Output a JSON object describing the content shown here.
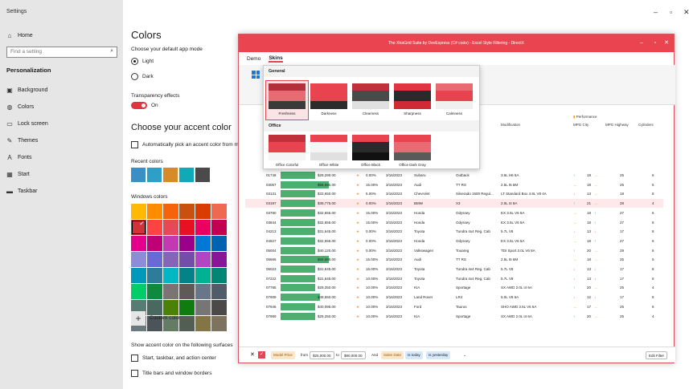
{
  "settings": {
    "window_title": "Settings",
    "nav": {
      "home": "Home",
      "search_placeholder": "Find a setting",
      "section": "Personalization",
      "items": [
        "Background",
        "Colors",
        "Lock screen",
        "Themes",
        "Fonts",
        "Start",
        "Taskbar"
      ]
    },
    "main": {
      "title": "Colors",
      "mode_label": "Choose your default app mode",
      "light": "Light",
      "dark": "Dark",
      "transparency_label": "Transparency effects",
      "toggle_state": "On",
      "accent_title": "Choose your accent color",
      "auto_pick": "Automatically pick an accent color from my",
      "recent_label": "Recent colors",
      "recent_colors": [
        "#3a8fc7",
        "#2f9fc9",
        "#d68a2a",
        "#11a8b8",
        "#4a4a4a"
      ],
      "windows_label": "Windows colors",
      "windows_colors": [
        "#ffb900",
        "#ff8c00",
        "#f7630c",
        "#ca5010",
        "#da3b01",
        "#ef6950",
        "#d13438",
        "#ff4343",
        "#e74856",
        "#e81123",
        "#ea005e",
        "#c30052",
        "#e3008c",
        "#bf0077",
        "#c239b3",
        "#9a0089",
        "#0078d7",
        "#0063b1",
        "#8e8cd8",
        "#6b69d6",
        "#8764b8",
        "#744da9",
        "#b146c2",
        "#881798",
        "#0099bc",
        "#2d7d9a",
        "#00b7c3",
        "#038387",
        "#00b294",
        "#018574",
        "#00cc6a",
        "#10893e",
        "#7a7574",
        "#5d5a58",
        "#68768a",
        "#515c6b",
        "#567c73",
        "#486860",
        "#498205",
        "#107c10",
        "#767676",
        "#4c4a48",
        "#69797e",
        "#4a5459",
        "#647c64",
        "#525e54",
        "#847545",
        "#7e735f"
      ],
      "custom_color": "Custom color",
      "surfaces_label": "Show accent color on the following surfaces",
      "surface1": "Start, taskbar, and action center",
      "surface2": "Title bars and window borders"
    }
  },
  "app": {
    "title": "The XtraGrid Suite by DevExpress (C# code) - Excel Style Filtering - DirectX",
    "tabs": [
      "Demo",
      "Skins"
    ],
    "skins_popup": {
      "general_header": "General",
      "office_header": "Office",
      "general": [
        {
          "name": "Freshness",
          "c": [
            "#b3303a",
            "#e86b74",
            "#3a3a3a"
          ]
        },
        {
          "name": "Darkness",
          "c": [
            "#e8434f",
            "#e8434f",
            "#2c2c2c"
          ]
        },
        {
          "name": "Clearness",
          "c": [
            "#c0303a",
            "#4a4a4a",
            "#e0e0e0"
          ]
        },
        {
          "name": "Sharpness",
          "c": [
            "#e03540",
            "#2a2a2a",
            "#d02a35"
          ]
        },
        {
          "name": "Calmness",
          "c": [
            "#e86b74",
            "#e8434f",
            "#f0f0f0"
          ]
        }
      ],
      "office": [
        {
          "name": "Office Colorful",
          "c": [
            "#c0303a",
            "#e8434f",
            "#f5f5f5"
          ]
        },
        {
          "name": "Office White",
          "c": [
            "#e8434f",
            "#f5f5f5",
            "#e0e0e0"
          ]
        },
        {
          "name": "Office Black",
          "c": [
            "#e8434f",
            "#2a2a2a",
            "#111111"
          ]
        },
        {
          "name": "Office Dark Gray",
          "c": [
            "#e8434f",
            "#e86b74",
            "#5a5a5a"
          ]
        }
      ]
    },
    "columns": {
      "modification": "Modification",
      "performance": "Performance",
      "mpg_city": "MPG City",
      "mpg_highway": "MPG Highway",
      "cylinders": "Cylinders"
    },
    "rows": [
      {
        "id": "01748",
        "bar": 0.62,
        "price": "$29,290.00",
        "pct": "0.00%",
        "date": "3/16/2023",
        "make": "Subaru",
        "model": "Outback",
        "mod": "3.6L H6 5A",
        "city": "18",
        "ca": "up",
        "hwy": "25",
        "ha": "right",
        "cyl": "6"
      },
      {
        "id": "03067",
        "bar": 0.85,
        "price": "$58,595.00",
        "pct": "15.00%",
        "date": "3/16/2023",
        "make": "Audi",
        "model": "TT RS",
        "mod": "2.5L I5 6M",
        "city": "18",
        "ca": "right",
        "hwy": "25",
        "ha": "right",
        "cyl": "5"
      },
      {
        "id": "03131",
        "bar": 0.62,
        "price": "$33,650.00",
        "pct": "5.00%",
        "date": "3/16/2023",
        "make": "Chevrolet",
        "model": "Silverado 1500 Regul...",
        "mod": "LT Standard Box 4.8L V8 4A",
        "city": "13",
        "ca": "down",
        "hwy": "18",
        "ha": "right",
        "cyl": "8"
      },
      {
        "id": "03197",
        "bar": 0.62,
        "price": "$39,775.00",
        "pct": "0.00%",
        "date": "3/16/2023",
        "make": "BMW",
        "model": "X3",
        "mod": "2.0L I4 8A",
        "city": "21",
        "ca": "up",
        "hwy": "28",
        "ha": "right",
        "cyl": "4"
      },
      {
        "id": "03780",
        "bar": 0.62,
        "price": "$32,655.00",
        "pct": "15.00%",
        "date": "3/15/2023",
        "make": "Honda",
        "model": "Odyssey",
        "mod": "EX 3.5L V6 5A",
        "city": "18",
        "ca": "right",
        "hwy": "27",
        "ha": "up",
        "cyl": "6"
      },
      {
        "id": "03844",
        "bar": 0.62,
        "price": "$32,655.00",
        "pct": "15.00%",
        "date": "3/15/2023",
        "make": "Honda",
        "model": "Odyssey",
        "mod": "EX 3.5L V6 5A",
        "city": "18",
        "ca": "right",
        "hwy": "27",
        "ha": "up",
        "cyl": "6"
      },
      {
        "id": "04213",
        "bar": 0.62,
        "price": "$31,645.00",
        "pct": "0.00%",
        "date": "3/16/2023",
        "make": "Toyota",
        "model": "Tundra 4x4 Reg. Cab",
        "mod": "5.7L V8",
        "city": "13",
        "ca": "down",
        "hwy": "17",
        "ha": "down",
        "cyl": "8"
      },
      {
        "id": "04627",
        "bar": 0.62,
        "price": "$32,655.00",
        "pct": "0.00%",
        "date": "3/16/2023",
        "make": "Honda",
        "model": "Odyssey",
        "mod": "EX 3.5L V6 5A",
        "city": "18",
        "ca": "right",
        "hwy": "27",
        "ha": "up",
        "cyl": "6"
      },
      {
        "id": "05004",
        "bar": 0.62,
        "price": "$40,120.00",
        "pct": "0.00%",
        "date": "3/16/2023",
        "make": "Volkswagen",
        "model": "Touareg",
        "mod": "TDI Sport 3.0L V6 8A",
        "city": "20",
        "ca": "up",
        "hwy": "29",
        "ha": "right",
        "cyl": "6"
      },
      {
        "id": "05666",
        "bar": 0.85,
        "price": "$58,595.00",
        "pct": "15.00%",
        "date": "3/16/2023",
        "make": "Audi",
        "model": "TT RS",
        "mod": "2.5L I5 6M",
        "city": "18",
        "ca": "right",
        "hwy": "25",
        "ha": "right",
        "cyl": "5"
      },
      {
        "id": "06023",
        "bar": 0.62,
        "price": "$31,645.00",
        "pct": "15.00%",
        "date": "3/15/2023",
        "make": "Toyota",
        "model": "Tundra 4x4 Reg. Cab",
        "mod": "5.7L V8",
        "city": "13",
        "ca": "down",
        "hwy": "17",
        "ha": "down",
        "cyl": "8"
      },
      {
        "id": "07222",
        "bar": 0.62,
        "price": "$31,645.00",
        "pct": "10.00%",
        "date": "3/16/2023",
        "make": "Toyota",
        "model": "Tundra 4x4 Reg. Cab",
        "mod": "5.7L V8",
        "city": "13",
        "ca": "down",
        "hwy": "17",
        "ha": "down",
        "cyl": "8"
      },
      {
        "id": "07785",
        "bar": 0.62,
        "price": "$29,250.00",
        "pct": "10.00%",
        "date": "3/16/2023",
        "make": "KIA",
        "model": "Sportage",
        "mod": "SX AWD 2.0L I4 6A",
        "city": "20",
        "ca": "up",
        "hwy": "25",
        "ha": "right",
        "cyl": "4"
      },
      {
        "id": "07909",
        "bar": 0.7,
        "price": "$49,550.00",
        "pct": "10.00%",
        "date": "3/16/2023",
        "make": "Land Rover",
        "model": "LR4",
        "mod": "5.0L V8 6A",
        "city": "12",
        "ca": "down",
        "hwy": "17",
        "ha": "down",
        "cyl": "8"
      },
      {
        "id": "07946",
        "bar": 0.62,
        "price": "$40,095.00",
        "pct": "10.00%",
        "date": "3/16/2023",
        "make": "Ford",
        "model": "Taurus",
        "mod": "SHO AWD 3.5L V6 6A",
        "city": "17",
        "ca": "right",
        "hwy": "25",
        "ha": "right",
        "cyl": "6"
      },
      {
        "id": "07959",
        "bar": 0.62,
        "price": "$29,250.00",
        "pct": "10.00%",
        "date": "3/16/2023",
        "make": "KIA",
        "model": "Sportage",
        "mod": "SX AWD 2.0L I4 6A",
        "city": "20",
        "ca": "up",
        "hwy": "25",
        "ha": "right",
        "cyl": "4"
      }
    ],
    "filter": {
      "field1": "Model Price",
      "from": "from",
      "v1": "$25,000.00",
      "to": "to",
      "v2": "$80,000.00",
      "and": "And",
      "field2": "Sales Date",
      "is_today": "Is today",
      "is_yesterday": "Is yesterday",
      "edit": "Edit Filter"
    }
  }
}
